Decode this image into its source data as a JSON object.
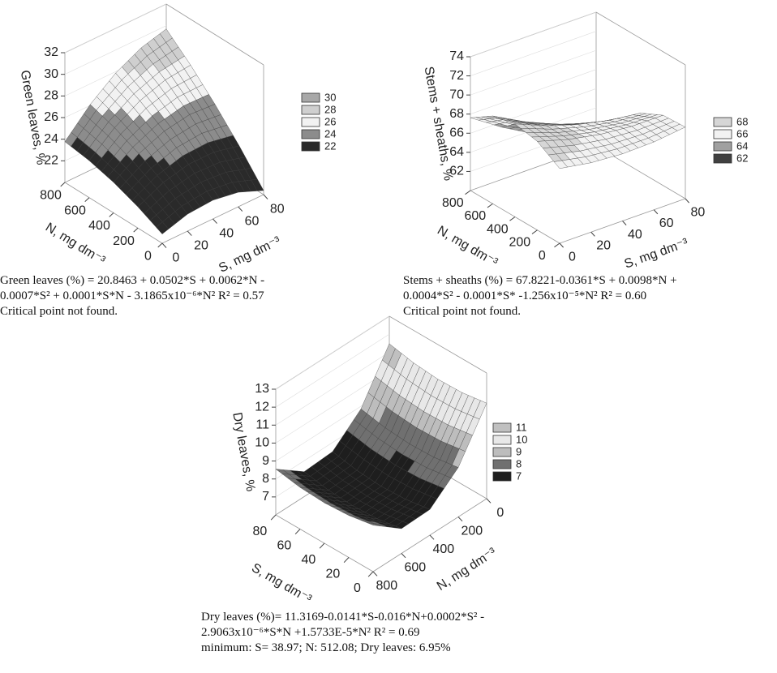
{
  "chart_data": [
    {
      "type": "surface",
      "zlabel": "Green leaves, %",
      "xlabel": "S, mg dm⁻³",
      "ylabel": "N, mg dm⁻³",
      "x": [
        0,
        20,
        40,
        60,
        80
      ],
      "y": [
        0,
        200,
        400,
        600,
        800
      ],
      "z": [
        [
          20.85,
          21.57,
          21.73,
          21.34,
          20.38
        ],
        [
          21.96,
          23.08,
          23.65,
          23.65,
          23.1
        ],
        [
          22.82,
          24.34,
          25.3,
          25.71,
          25.55
        ],
        [
          23.42,
          25.34,
          26.71,
          27.51,
          27.76
        ],
        [
          23.77,
          26.09,
          27.86,
          29.06,
          29.7
        ]
      ],
      "xlim": [
        0,
        80
      ],
      "ylim": [
        0,
        800
      ],
      "zlim": [
        20,
        32
      ],
      "xticks": [
        0,
        20,
        40,
        60,
        80
      ],
      "yticks": [
        0,
        200,
        400,
        600,
        800
      ],
      "zticks": [
        22,
        24,
        26,
        28,
        30,
        32
      ],
      "levels": [
        30,
        28,
        26,
        24,
        22
      ],
      "level_colors": [
        "#a8a8a8",
        "#cfcfcf",
        "#f2f2f2",
        "#8c8c8c",
        "#2a2a2a"
      ],
      "caption": [
        "Green leaves (%) = 20.8463 + 0.0502*S + 0.0062*N -",
        "0.0007*S² + 0.0001*S*N - 3.1865x10⁻⁶*N²  R² = 0.57",
        "Critical point not found."
      ]
    },
    {
      "type": "surface",
      "zlabel": "Stems + sheaths, %",
      "xlabel": "S, mg dm⁻³",
      "ylabel": "N, mg dm⁻³",
      "x": [
        0,
        20,
        40,
        60,
        80
      ],
      "y": [
        0,
        200,
        400,
        600,
        800
      ],
      "z": [
        [
          67.82,
          67.26,
          67.02,
          67.1,
          67.49
        ],
        [
          69.28,
          68.32,
          67.68,
          67.35,
          67.35
        ],
        [
          69.73,
          68.37,
          67.33,
          66.61,
          66.2
        ],
        [
          69.18,
          67.42,
          65.98,
          64.85,
          64.05
        ],
        [
          67.62,
          65.46,
          63.62,
          62.1,
          60.9
        ]
      ],
      "xlim": [
        0,
        80
      ],
      "ylim": [
        0,
        800
      ],
      "zlim": [
        60,
        74
      ],
      "xticks": [
        0,
        20,
        40,
        60,
        80
      ],
      "yticks": [
        0,
        200,
        400,
        600,
        800
      ],
      "zticks": [
        62,
        64,
        66,
        68,
        70,
        72,
        74
      ],
      "levels": [
        68,
        66,
        64,
        62
      ],
      "level_colors": [
        "#d6d6d6",
        "#f2f2f2",
        "#a0a0a0",
        "#404040"
      ],
      "caption": [
        "Stems + sheaths (%) = 67.8221-0.0361*S +  0.0098*N +",
        "0.0004*S² - 0.0001*S* -1.256x10⁻⁵*N²  R² = 0.60",
        "Critical point not found."
      ]
    },
    {
      "type": "surface",
      "zlabel": "Dry leaves, %",
      "xlabel": "S, mg dm⁻³",
      "ylabel": "N, mg dm⁻³",
      "x": [
        0,
        20,
        40,
        60,
        80
      ],
      "y": [
        0,
        200,
        400,
        600,
        800
      ],
      "z": [
        [
          11.32,
          11.11,
          11.07,
          11.19,
          11.47
        ],
        [
          8.75,
          8.53,
          8.48,
          8.59,
          8.85
        ],
        [
          7.43,
          7.21,
          7.14,
          7.24,
          7.49
        ],
        [
          7.38,
          7.14,
          7.07,
          7.15,
          7.39
        ],
        [
          8.59,
          8.34,
          8.25,
          8.32,
          8.55
        ]
      ],
      "xlim": [
        0,
        80
      ],
      "ylim": [
        0,
        800
      ],
      "zlim": [
        6,
        13
      ],
      "xticks": [
        0,
        20,
        40,
        60,
        80
      ],
      "yticks": [
        0,
        200,
        400,
        600,
        800
      ],
      "zticks": [
        7,
        8,
        9,
        10,
        11,
        12,
        13
      ],
      "levels": [
        11,
        10,
        9,
        8,
        7
      ],
      "level_colors": [
        "#c0c0c0",
        "#e8e8e8",
        "#bdbdbd",
        "#707070",
        "#1e1e1e"
      ],
      "caption": [
        "Dry leaves (%)= 11.3169-0.0141*S-0.016*N+0.0002*S² -",
        "2.9063x10⁻⁶*S*N +1.5733E-5*N²  R² = 0.69",
        "minimum: S= 38.97; N: 512.08; Dry leaves: 6.95%"
      ]
    }
  ]
}
